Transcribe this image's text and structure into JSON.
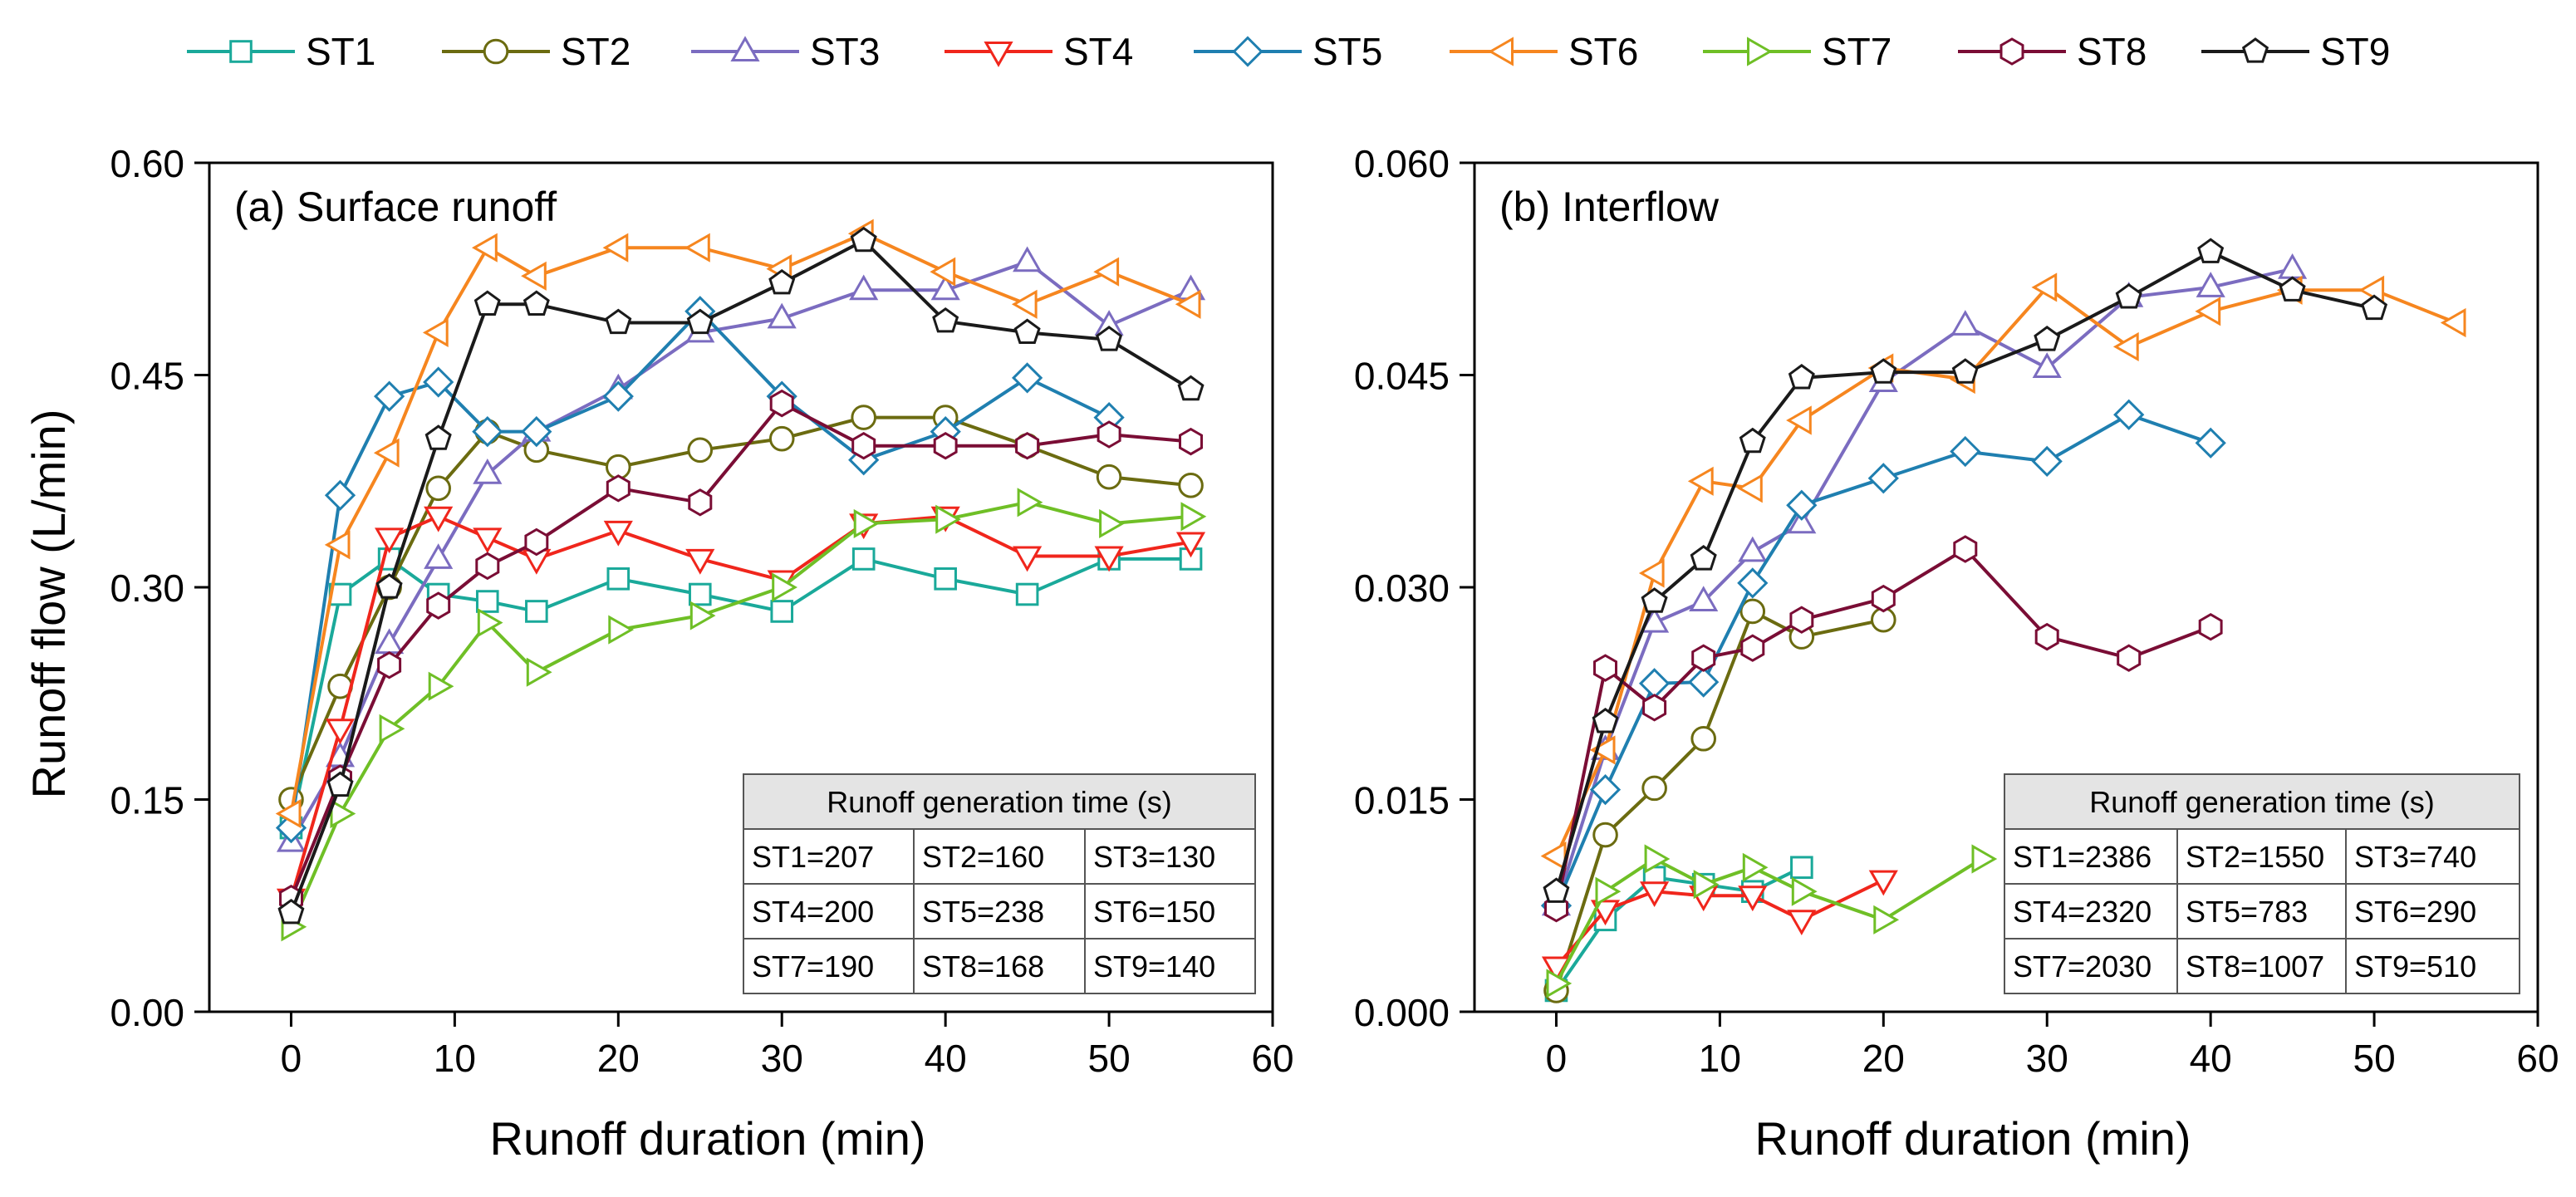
{
  "legend": [
    "ST1",
    "ST2",
    "ST3",
    "ST4",
    "ST5",
    "ST6",
    "ST7",
    "ST8",
    "ST9"
  ],
  "series_styles": [
    {
      "name": "ST1",
      "color": "#1aa99a",
      "marker": "square"
    },
    {
      "name": "ST2",
      "color": "#6b6b10",
      "marker": "circle"
    },
    {
      "name": "ST3",
      "color": "#7b6cc0",
      "marker": "triangle-up"
    },
    {
      "name": "ST4",
      "color": "#f0261c",
      "marker": "triangle-down"
    },
    {
      "name": "ST5",
      "color": "#1f7fb0",
      "marker": "diamond"
    },
    {
      "name": "ST6",
      "color": "#f6861f",
      "marker": "triangle-left"
    },
    {
      "name": "ST7",
      "color": "#6fbf26",
      "marker": "triangle-right"
    },
    {
      "name": "ST8",
      "color": "#7a0d35",
      "marker": "hexagon"
    },
    {
      "name": "ST9",
      "color": "#1a1a1a",
      "marker": "pentagon"
    }
  ],
  "y_axis_label": "Runoff flow (L/min)",
  "chart_data": [
    {
      "type": "line",
      "title": "(a) Surface runoff",
      "xlabel": "Runoff duration (min)",
      "ylabel": "Runoff flow (L/min)",
      "xlim": [
        -5,
        60
      ],
      "ylim": [
        0,
        0.6
      ],
      "xticks": [
        0,
        10,
        20,
        30,
        40,
        50,
        60
      ],
      "yticks": [
        0,
        0.15,
        0.3,
        0.45,
        0.6
      ],
      "xtick_labels": [
        "0",
        "10",
        "20",
        "30",
        "40",
        "50",
        "60"
      ],
      "ytick_labels": [
        "0.00",
        "0.15",
        "0.30",
        "0.45",
        "0.60"
      ],
      "series": [
        {
          "name": "ST1",
          "x": [
            0,
            3,
            6,
            9,
            12,
            15,
            20,
            25,
            30,
            35,
            40,
            45,
            50,
            55
          ],
          "y": [
            0.13,
            0.295,
            0.32,
            0.295,
            0.29,
            0.283,
            0.306,
            0.295,
            0.283,
            0.32,
            0.306,
            0.295,
            0.32,
            0.32
          ]
        },
        {
          "name": "ST2",
          "x": [
            0,
            3,
            6,
            9,
            12,
            15,
            20,
            25,
            30,
            35,
            40,
            45,
            50,
            55
          ],
          "y": [
            0.15,
            0.23,
            0.3,
            0.37,
            0.41,
            0.397,
            0.385,
            0.397,
            0.405,
            0.42,
            0.42,
            0.4,
            0.378,
            0.372
          ]
        },
        {
          "name": "ST3",
          "x": [
            0,
            3,
            6,
            9,
            12,
            15,
            20,
            25,
            30,
            35,
            40,
            45,
            50,
            55
          ],
          "y": [
            0.12,
            0.18,
            0.26,
            0.32,
            0.38,
            0.41,
            0.44,
            0.48,
            0.49,
            0.51,
            0.51,
            0.53,
            0.485,
            0.51
          ]
        },
        {
          "name": "ST4",
          "x": [
            0,
            3,
            6,
            9,
            12,
            15,
            20,
            25,
            30,
            35,
            40,
            45,
            50,
            55
          ],
          "y": [
            0.08,
            0.2,
            0.335,
            0.35,
            0.335,
            0.32,
            0.34,
            0.32,
            0.305,
            0.345,
            0.35,
            0.322,
            0.322,
            0.332
          ]
        },
        {
          "name": "ST5",
          "x": [
            0,
            3,
            6,
            9,
            12,
            15,
            20,
            25,
            30,
            35,
            40,
            45,
            50
          ],
          "y": [
            0.13,
            0.365,
            0.435,
            0.445,
            0.41,
            0.41,
            0.435,
            0.495,
            0.435,
            0.39,
            0.41,
            0.448,
            0.42
          ]
        },
        {
          "name": "ST6",
          "x": [
            0,
            3,
            6,
            9,
            12,
            15,
            20,
            25,
            30,
            35,
            40,
            45,
            50,
            55
          ],
          "y": [
            0.14,
            0.33,
            0.395,
            0.48,
            0.54,
            0.52,
            0.54,
            0.54,
            0.525,
            0.55,
            0.523,
            0.5,
            0.523,
            0.5
          ]
        },
        {
          "name": "ST7",
          "x": [
            0,
            3,
            6,
            9,
            12,
            15,
            20,
            25,
            30,
            35,
            40,
            45,
            50,
            55
          ],
          "y": [
            0.06,
            0.14,
            0.2,
            0.23,
            0.275,
            0.24,
            0.27,
            0.28,
            0.3,
            0.345,
            0.348,
            0.36,
            0.345,
            0.35
          ]
        },
        {
          "name": "ST8",
          "x": [
            0,
            3,
            6,
            9,
            12,
            15,
            20,
            25,
            30,
            35,
            40,
            45,
            50,
            55
          ],
          "y": [
            0.08,
            0.165,
            0.245,
            0.287,
            0.315,
            0.332,
            0.37,
            0.36,
            0.43,
            0.4,
            0.4,
            0.4,
            0.408,
            0.403
          ]
        },
        {
          "name": "ST9",
          "x": [
            0,
            3,
            6,
            9,
            12,
            15,
            20,
            25,
            30,
            35,
            40,
            45,
            50,
            55
          ],
          "y": [
            0.07,
            0.16,
            0.3,
            0.405,
            0.5,
            0.5,
            0.487,
            0.487,
            0.515,
            0.545,
            0.488,
            0.48,
            0.475,
            0.44
          ]
        }
      ],
      "table": {
        "title": "Runoff generation time (s)",
        "rows": [
          [
            "ST1=207",
            "ST2=160",
            "ST3=130"
          ],
          [
            "ST4=200",
            "ST5=238",
            "ST6=150"
          ],
          [
            "ST7=190",
            "ST8=168",
            "ST9=140"
          ]
        ]
      }
    },
    {
      "type": "line",
      "title": "(b) Interflow",
      "xlabel": "Runoff duration (min)",
      "ylabel": "",
      "xlim": [
        -5,
        60
      ],
      "ylim": [
        0,
        0.06
      ],
      "xticks": [
        0,
        10,
        20,
        30,
        40,
        50,
        60
      ],
      "yticks": [
        0,
        0.015,
        0.03,
        0.045,
        0.06
      ],
      "xtick_labels": [
        "0",
        "10",
        "20",
        "30",
        "40",
        "50",
        "60"
      ],
      "ytick_labels": [
        "0.000",
        "0.015",
        "0.030",
        "0.045",
        "0.060"
      ],
      "series": [
        {
          "name": "ST1",
          "x": [
            0,
            3,
            6,
            9,
            12,
            15
          ],
          "y": [
            0.0015,
            0.0065,
            0.0095,
            0.009,
            0.0085,
            0.0102
          ]
        },
        {
          "name": "ST2",
          "x": [
            0,
            3,
            6,
            9,
            12,
            15,
            20
          ],
          "y": [
            0.0015,
            0.0125,
            0.0158,
            0.0193,
            0.0283,
            0.0265,
            0.0277
          ]
        },
        {
          "name": "ST3",
          "x": [
            0,
            3,
            6,
            9,
            12,
            15,
            20,
            25,
            30,
            35,
            40,
            45
          ],
          "y": [
            0.0075,
            0.0185,
            0.0275,
            0.029,
            0.0325,
            0.0345,
            0.0445,
            0.0485,
            0.0455,
            0.0505,
            0.0512,
            0.0525
          ]
        },
        {
          "name": "ST4",
          "x": [
            0,
            3,
            6,
            9,
            12,
            15,
            20
          ],
          "y": [
            0.0032,
            0.0072,
            0.0085,
            0.0082,
            0.0082,
            0.0065,
            0.0093
          ]
        },
        {
          "name": "ST5",
          "x": [
            0,
            3,
            6,
            9,
            12,
            15,
            20,
            25,
            30,
            35,
            40
          ],
          "y": [
            0.0075,
            0.0157,
            0.0232,
            0.0233,
            0.0303,
            0.0358,
            0.0377,
            0.0396,
            0.0389,
            0.0422,
            0.0402
          ]
        },
        {
          "name": "ST6",
          "x": [
            0,
            3,
            6,
            9,
            12,
            15,
            20,
            25,
            30,
            35,
            40,
            45,
            50,
            55
          ],
          "y": [
            0.011,
            0.0185,
            0.031,
            0.0375,
            0.037,
            0.0418,
            0.0455,
            0.0447,
            0.0512,
            0.047,
            0.0495,
            0.051,
            0.051,
            0.0487
          ]
        },
        {
          "name": "ST7",
          "x": [
            0,
            3,
            6,
            9,
            12,
            15,
            20,
            26
          ],
          "y": [
            0.002,
            0.0085,
            0.0108,
            0.009,
            0.0102,
            0.0085,
            0.0065,
            0.0108
          ]
        },
        {
          "name": "ST8",
          "x": [
            0,
            3,
            6,
            9,
            12,
            15,
            20,
            25,
            30,
            35,
            40
          ],
          "y": [
            0.0073,
            0.0243,
            0.0215,
            0.025,
            0.0257,
            0.0277,
            0.0292,
            0.0327,
            0.0265,
            0.025,
            0.0272
          ]
        },
        {
          "name": "ST9",
          "x": [
            0,
            3,
            6,
            9,
            12,
            15,
            20,
            25,
            30,
            35,
            40,
            45,
            50
          ],
          "y": [
            0.0085,
            0.0205,
            0.029,
            0.032,
            0.0403,
            0.0448,
            0.0452,
            0.0452,
            0.0475,
            0.0505,
            0.0537,
            0.051,
            0.0497
          ]
        }
      ],
      "table": {
        "title": "Runoff generation time (s)",
        "rows": [
          [
            "ST1=2386",
            "ST2=1550",
            "ST3=740"
          ],
          [
            "ST4=2320",
            "ST5=783",
            "ST6=290"
          ],
          [
            "ST7=2030",
            "ST8=1007",
            "ST9=510"
          ]
        ]
      }
    }
  ]
}
